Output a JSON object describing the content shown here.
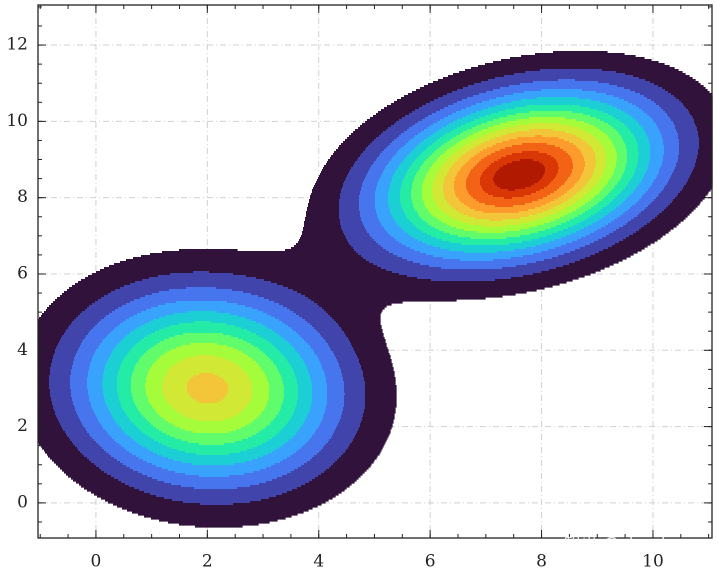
{
  "chart_data": {
    "type": "contour",
    "xlim": [
      -1.04,
      11.06
    ],
    "ylim": [
      -0.92,
      13.05
    ],
    "xticks": [
      0,
      2,
      4,
      6,
      8,
      10
    ],
    "yticks": [
      0,
      2,
      4,
      6,
      8,
      10,
      12
    ],
    "grid": true,
    "components": [
      {
        "x": 2.0,
        "y": 3.0,
        "sx": 1.55,
        "sy": 1.7,
        "angle": 20,
        "weight": 0.72
      },
      {
        "x": 7.6,
        "y": 8.6,
        "sx": 1.75,
        "sy": 1.25,
        "angle": 32,
        "weight": 1.0
      }
    ],
    "levels": [
      0.07,
      0.14,
      0.21,
      0.28,
      0.35,
      0.42,
      0.49,
      0.56,
      0.63,
      0.7,
      0.77,
      0.84,
      0.91,
      0.96
    ],
    "colors": [
      "#30123b",
      "#4145ab",
      "#4675ed",
      "#39a2fc",
      "#1bcfd4",
      "#24eca6",
      "#61fc6c",
      "#a4fc3b",
      "#d1e834",
      "#f3c63a",
      "#fe9b2d",
      "#f36315",
      "#d93806",
      "#b11901"
    ],
    "watermark": "知乎 @slandarer"
  }
}
